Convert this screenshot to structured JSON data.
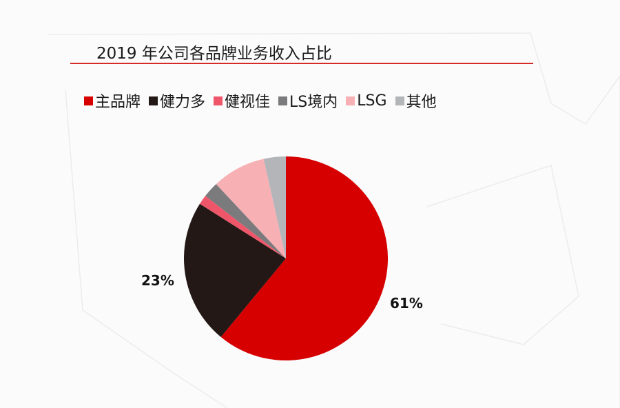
{
  "title": "2019 年公司各品牌业务收入占比",
  "legend": [
    {
      "label": "主品牌",
      "color": "#d60000"
    },
    {
      "label": "健力多",
      "color": "#231815"
    },
    {
      "label": "健视佳",
      "color": "#f0566a"
    },
    {
      "label": "LS境内",
      "color": "#7b7b7d"
    },
    {
      "label": "LSG",
      "color": "#f7b0b4"
    },
    {
      "label": "其他",
      "color": "#b4b5b8"
    }
  ],
  "labels": {
    "main_brand_pct": "61%",
    "jianliduo_pct": "23%"
  },
  "chart_data": {
    "type": "pie",
    "title": "2019 年公司各品牌业务收入占比",
    "categories": [
      "主品牌",
      "健力多",
      "健视佳",
      "LS境内",
      "LSG",
      "其他"
    ],
    "values": [
      61,
      23,
      1.5,
      2.5,
      8.5,
      3.5
    ],
    "colors": [
      "#d60000",
      "#231815",
      "#f0566a",
      "#7b7b7d",
      "#f7b0b4",
      "#b4b5b8"
    ],
    "data_labels": {
      "主品牌": "61%",
      "健力多": "23%"
    },
    "start_angle": "12 o'clock",
    "direction": "clockwise",
    "legend_position": "top"
  }
}
